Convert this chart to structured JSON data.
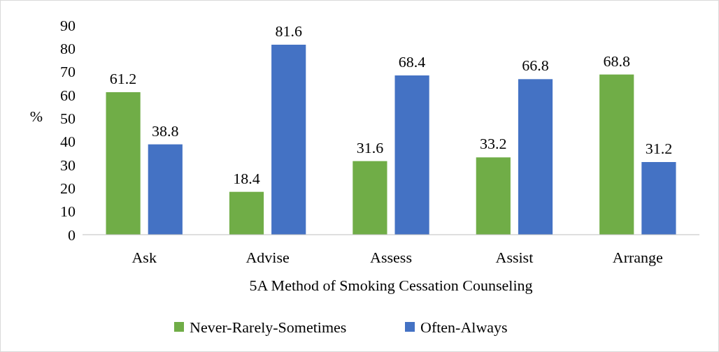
{
  "chart_data": {
    "type": "bar",
    "xlabel": "5A Method of Smoking Cessation Counseling",
    "ylabel": "%",
    "categories": [
      "Ask",
      "Advise",
      "Assess",
      "Assist",
      "Arrange"
    ],
    "series": [
      {
        "name": "Never-Rarely-Sometimes",
        "color": "#70ad47",
        "values": [
          61.2,
          18.4,
          31.6,
          33.2,
          68.8
        ]
      },
      {
        "name": "Often-Always",
        "color": "#4472c4",
        "values": [
          38.8,
          81.6,
          68.4,
          66.8,
          31.2
        ]
      }
    ],
    "ylim": [
      0,
      90
    ],
    "yticks": [
      0,
      10,
      20,
      30,
      40,
      50,
      60,
      70,
      80,
      90
    ],
    "data_labels": true,
    "legend": "bottom",
    "grid": false
  }
}
